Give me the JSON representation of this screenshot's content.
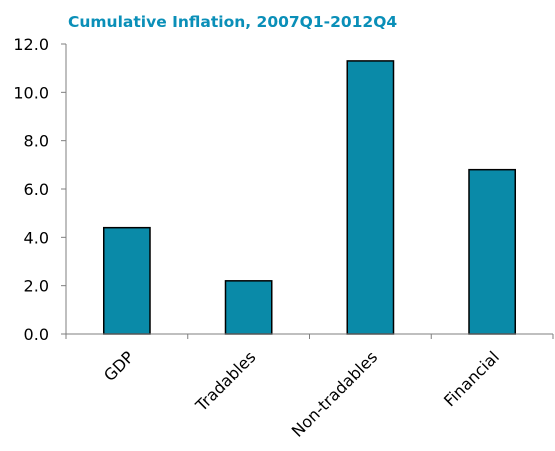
{
  "chart_data": {
    "type": "bar",
    "title": "Cumulative Inflation, 2007Q1-2012Q4",
    "xlabel": "",
    "ylabel": "",
    "categories": [
      "GDP",
      "Tradables",
      "Non-tradables",
      "Financial"
    ],
    "values": [
      4.4,
      2.2,
      11.3,
      6.8
    ],
    "ylim": [
      0,
      12
    ],
    "y_ticks": [
      "0.0",
      "2.0",
      "4.0",
      "6.0",
      "8.0",
      "10.0",
      "12.0"
    ],
    "grid": false,
    "legend": "none"
  },
  "colors": {
    "title": "#0a8fb8",
    "bar_fill": "#0a8aa8",
    "bar_stroke": "#000000",
    "axis": "#7f7f7f"
  }
}
